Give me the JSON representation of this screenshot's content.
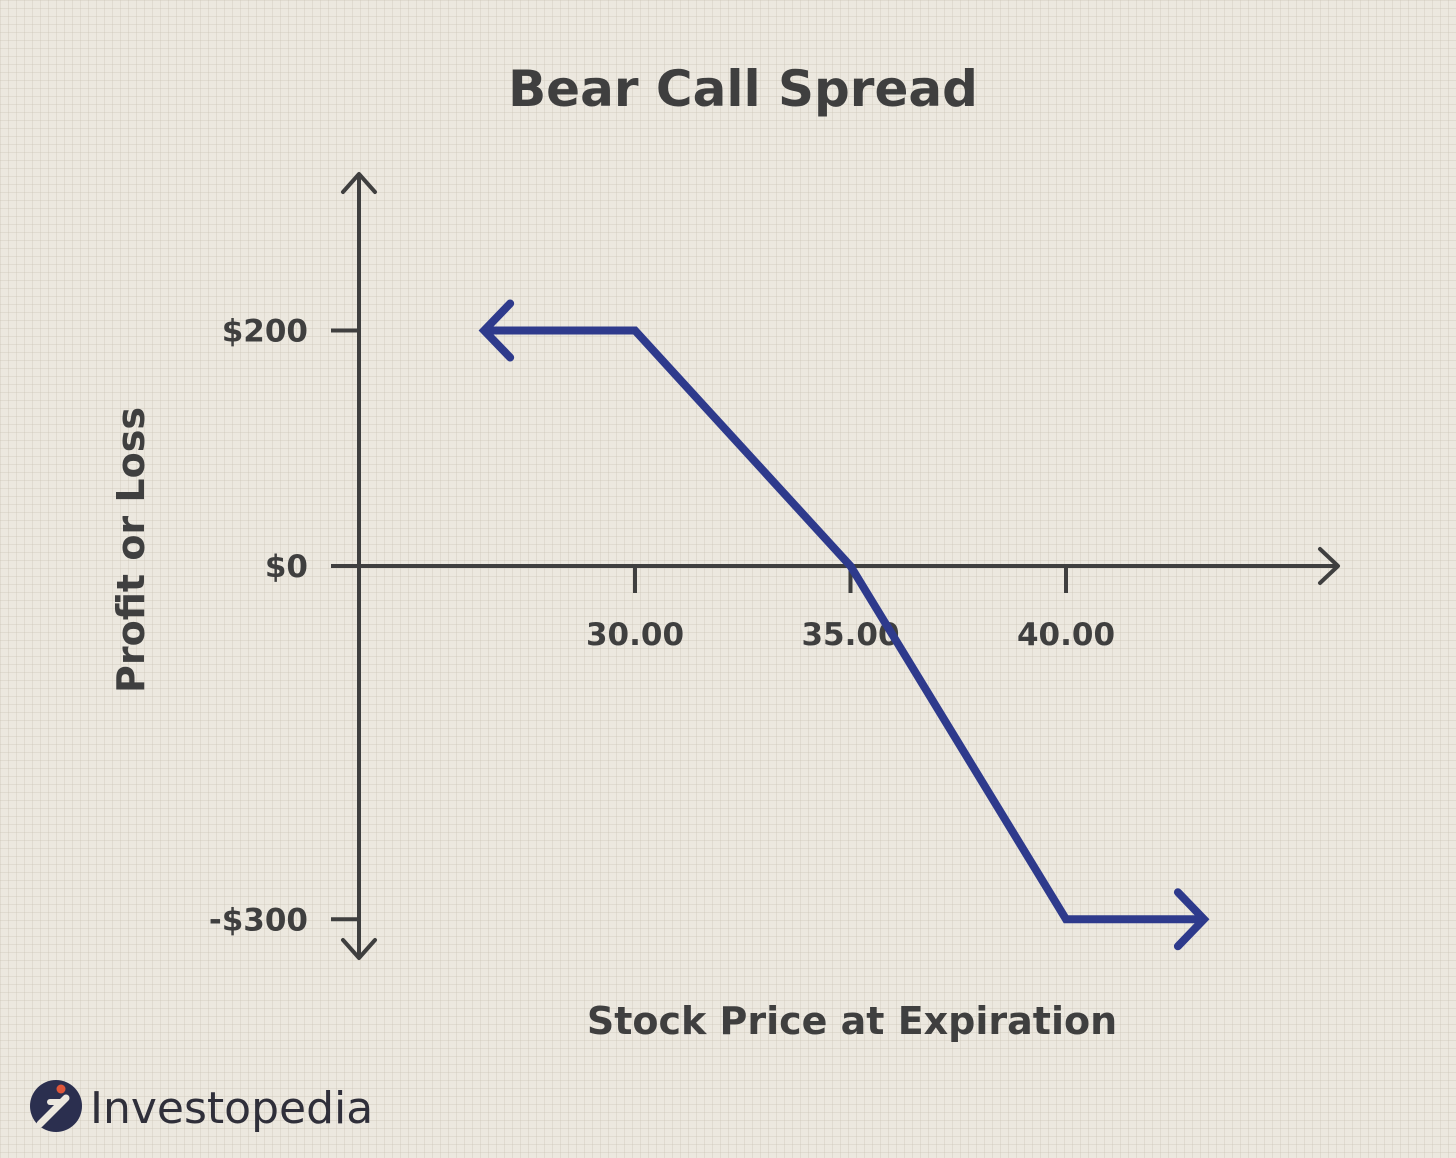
{
  "brand": {
    "name": "Investopedia",
    "logo_icon": "investopedia-logo-icon",
    "logo_color": "#2b2f4f",
    "logo_dot_color": "#e0563a"
  },
  "colors": {
    "background": "#ece8df",
    "axis": "#3f3f3f",
    "series": "#2e3a8c"
  },
  "chart_data": {
    "type": "line",
    "title": "Bear Call Spread",
    "xlabel": "Stock Price at Expiration",
    "ylabel": "Profit or Loss",
    "x_ticks": [
      {
        "value": 30,
        "label": "30.00"
      },
      {
        "value": 35,
        "label": "35.00"
      },
      {
        "value": 40,
        "label": "40.00"
      }
    ],
    "y_ticks": [
      {
        "value": 200,
        "label": "$200"
      },
      {
        "value": 0,
        "label": "$0"
      },
      {
        "value": -300,
        "label": "-$300"
      }
    ],
    "series": [
      {
        "x": [
          26.5,
          30,
          35,
          40,
          43.2
        ],
        "y": [
          200,
          200,
          0,
          -300,
          -300
        ],
        "arrows": "both-ends"
      }
    ],
    "grid": true,
    "legend": "none"
  }
}
